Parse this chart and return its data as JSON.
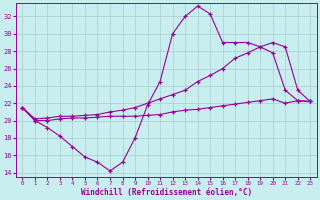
{
  "xlabel": "Windchill (Refroidissement éolien,°C)",
  "background_color": "#c8eef0",
  "grid_color": "#b8d8da",
  "line_color": "#990099",
  "ylim": [
    13.5,
    33.5
  ],
  "xlim": [
    -0.5,
    23.5
  ],
  "yticks": [
    14,
    16,
    18,
    20,
    22,
    24,
    26,
    28,
    30,
    32
  ],
  "xticks": [
    0,
    1,
    2,
    3,
    4,
    5,
    6,
    7,
    8,
    9,
    10,
    11,
    12,
    13,
    14,
    15,
    16,
    17,
    18,
    19,
    20,
    21,
    22,
    23
  ],
  "line1_x": [
    0,
    1,
    2,
    3,
    4,
    5,
    6,
    7,
    8,
    9,
    10,
    11,
    12,
    13,
    14,
    15,
    16,
    17,
    18,
    19,
    20,
    21,
    22,
    23
  ],
  "line1_y": [
    21.5,
    20.0,
    19.2,
    18.2,
    17.0,
    15.8,
    15.2,
    14.2,
    15.2,
    18.0,
    21.8,
    24.5,
    30.0,
    32.0,
    33.2,
    32.3,
    29.0,
    29.0,
    29.0,
    28.5,
    27.8,
    23.5,
    22.3,
    22.2
  ],
  "line2_x": [
    0,
    1,
    2,
    3,
    4,
    5,
    6,
    7,
    8,
    9,
    10,
    11,
    12,
    13,
    14,
    15,
    16,
    17,
    18,
    19,
    20,
    21,
    22,
    23
  ],
  "line2_y": [
    21.5,
    20.2,
    20.3,
    20.5,
    20.5,
    20.6,
    20.7,
    21.0,
    21.2,
    21.5,
    22.0,
    22.5,
    23.0,
    23.5,
    24.5,
    25.2,
    26.0,
    27.2,
    27.8,
    28.5,
    29.0,
    28.5,
    23.5,
    22.2
  ],
  "line3_x": [
    0,
    1,
    2,
    3,
    4,
    5,
    6,
    7,
    8,
    9,
    10,
    11,
    12,
    13,
    14,
    15,
    16,
    17,
    18,
    19,
    20,
    21,
    22,
    23
  ],
  "line3_y": [
    21.5,
    20.0,
    20.0,
    20.2,
    20.3,
    20.3,
    20.4,
    20.5,
    20.5,
    20.5,
    20.6,
    20.7,
    21.0,
    21.2,
    21.3,
    21.5,
    21.7,
    21.9,
    22.1,
    22.3,
    22.5,
    22.0,
    22.3,
    22.2
  ]
}
